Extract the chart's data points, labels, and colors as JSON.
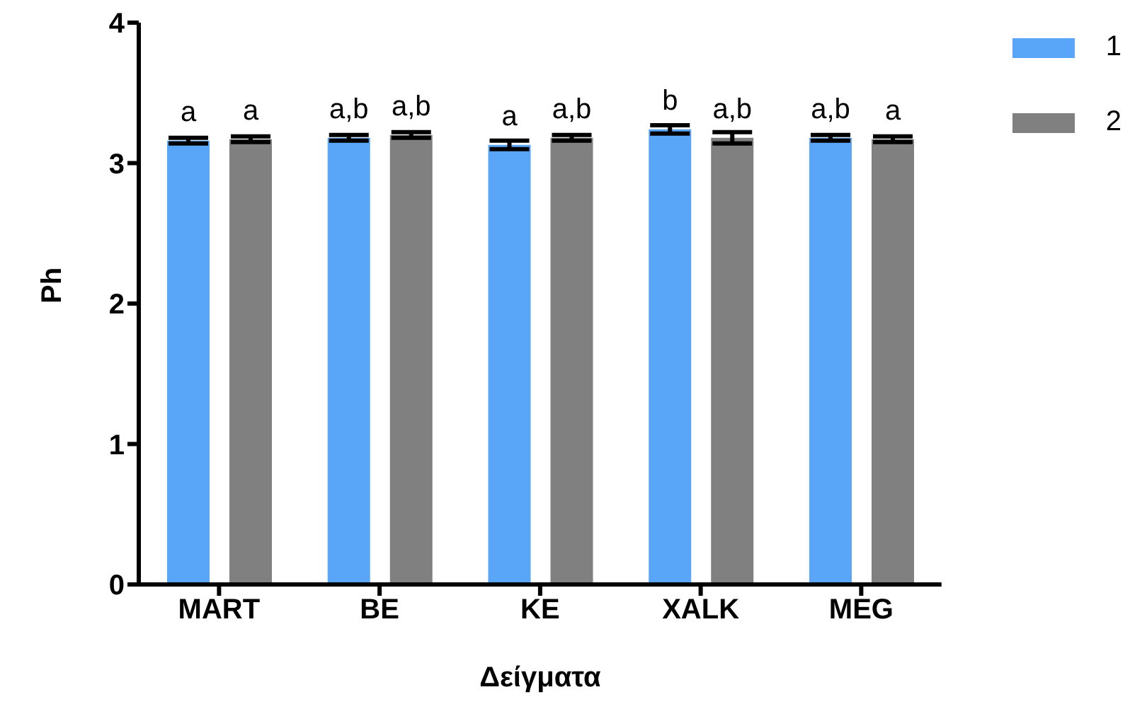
{
  "chart_data": {
    "type": "bar",
    "categories": [
      "MART",
      "BE",
      "KE",
      "XALK",
      "MEG"
    ],
    "xlabel": "Δείγματα",
    "ylabel": "Ph",
    "ylim": [
      0,
      4
    ],
    "yticks": [
      0,
      1,
      2,
      3,
      4
    ],
    "grid": false,
    "legend": "top right",
    "series": [
      {
        "name": "1",
        "color": "#59a5f7",
        "values": [
          3.16,
          3.18,
          3.13,
          3.24,
          3.18
        ],
        "errors": [
          0.02,
          0.02,
          0.03,
          0.03,
          0.02
        ],
        "value_labels": [
          "a",
          "a,b",
          "a",
          "b",
          "a,b"
        ]
      },
      {
        "name": "2",
        "color": "#808080",
        "values": [
          3.17,
          3.2,
          3.18,
          3.18,
          3.17
        ],
        "errors": [
          0.02,
          0.02,
          0.02,
          0.04,
          0.02
        ],
        "value_labels": [
          "a",
          "a,b",
          "a,b",
          "a,b",
          "a"
        ]
      }
    ]
  }
}
